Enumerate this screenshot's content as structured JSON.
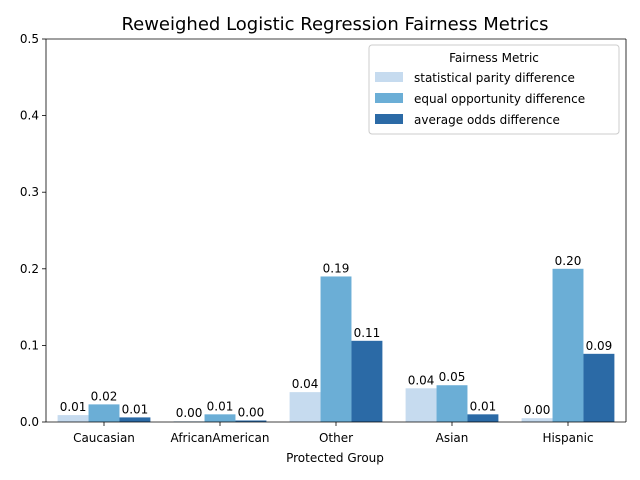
{
  "chart_data": {
    "type": "bar",
    "title": "Reweighed Logistic Regression Fairness Metrics",
    "xlabel": "Protected Group",
    "ylabel": "",
    "ylim": [
      0,
      0.5
    ],
    "yticks": [
      "0.0",
      "0.1",
      "0.2",
      "0.3",
      "0.4",
      "0.5"
    ],
    "categories": [
      "Caucasian",
      "AfricanAmerican",
      "Other",
      "Asian",
      "Hispanic"
    ],
    "legend": {
      "title": "Fairness Metric",
      "placement": "top-right"
    },
    "grid": false,
    "series": [
      {
        "name": "statistical parity difference",
        "color": "#c6dbef",
        "values": [
          0.009,
          0.001,
          0.039,
          0.044,
          0.005
        ],
        "labels": [
          "0.01",
          "0.00",
          "0.04",
          "0.04",
          "0.00"
        ]
      },
      {
        "name": "equal opportunity difference",
        "color": "#6baed6",
        "values": [
          0.023,
          0.01,
          0.19,
          0.048,
          0.2
        ],
        "labels": [
          "0.02",
          "0.01",
          "0.19",
          "0.05",
          "0.20"
        ]
      },
      {
        "name": "average odds difference",
        "color": "#2b6aa6",
        "values": [
          0.006,
          0.002,
          0.106,
          0.01,
          0.089
        ],
        "labels": [
          "0.01",
          "0.00",
          "0.11",
          "0.01",
          "0.09"
        ]
      }
    ]
  }
}
